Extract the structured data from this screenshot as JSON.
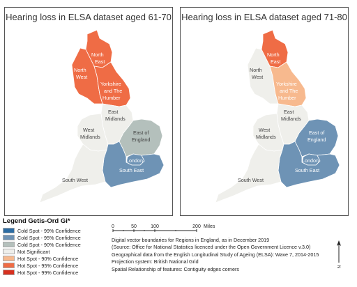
{
  "maps": [
    {
      "title": "Hearing loss in ELSA dataset aged 61-70",
      "regions": {
        "north_east": "Hot Spot - 95% Confidence",
        "north_west": "Hot Spot - 95% Confidence",
        "yorkshire": "Hot Spot - 95% Confidence",
        "east_midlands": "Not Significant",
        "west_midlands": "Not Significant",
        "east_of_england": "Cold Spot - 90% Confidence",
        "london": "Cold Spot - 95% Confidence",
        "south_east": "Cold Spot - 95% Confidence",
        "south_west": "Not Significant"
      }
    },
    {
      "title": "Hearing loss in ELSA dataset aged 71-80",
      "regions": {
        "north_east": "Hot Spot - 95% Confidence",
        "north_west": "Not Significant",
        "yorkshire": "Hot Spot - 90% Confidence",
        "east_midlands": "Not Significant",
        "west_midlands": "Not Significant",
        "east_of_england": "Cold Spot - 95% Confidence",
        "london": "Cold Spot - 95% Confidence",
        "south_east": "Cold Spot - 95% Confidence",
        "south_west": "Not Significant"
      }
    }
  ],
  "region_names": {
    "north_east": [
      "North",
      "East"
    ],
    "north_west": [
      "North",
      "West"
    ],
    "yorkshire": [
      "Yorkshire",
      "and The",
      "Humber"
    ],
    "east_midlands": [
      "East",
      "Midlands"
    ],
    "west_midlands": [
      "West",
      "Midlands"
    ],
    "east_of_england": [
      "East of",
      "England"
    ],
    "london": [
      "London"
    ],
    "south_east": [
      "South East"
    ],
    "south_west": [
      "South West"
    ]
  },
  "legend": {
    "title": "Legend Getis-Ord Gi*",
    "items": [
      {
        "label": "Cold Spot - 99% Confidence",
        "color": "#2b6ca3"
      },
      {
        "label": "Cold Spot - 95% Confidence",
        "color": "#6e93b5"
      },
      {
        "label": "Cold Spot - 90% Confidence",
        "color": "#b4c0bc"
      },
      {
        "label": "Not Significant",
        "color": "#efefeb"
      },
      {
        "label": "Hot Spot - 90% Confidence",
        "color": "#f7b98e"
      },
      {
        "label": "Hot Spot - 95% Confidence",
        "color": "#ef6c45"
      },
      {
        "label": "Hot Spot - 99% Confidence",
        "color": "#d7301f"
      }
    ]
  },
  "scale_bar": {
    "ticks": [
      "0",
      "50",
      "100",
      "200"
    ],
    "unit": "Miles"
  },
  "credits": [
    "Digital vector boundaries for Regions in England, as in December 2019",
    "(Source: Office for National Statistics licenced under the Open Government Licence v.3.0)",
    "Geographical data from the English Longitudinal Study of Ageing (ELSA): Wave 7, 2014-2015",
    "Projection system: British National Grid",
    "Spatial Relationship of features: Contiguity edges corners"
  ],
  "north_label": "N"
}
